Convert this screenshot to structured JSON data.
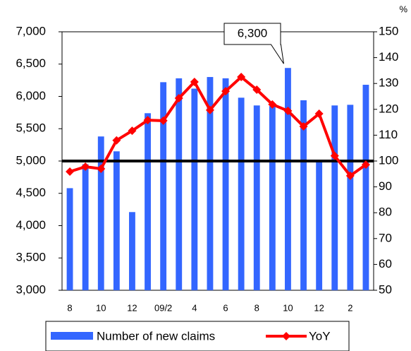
{
  "chart_data": {
    "type": "bar_line",
    "unit_label": "%",
    "annotation": "6,300",
    "categories": [
      "8",
      null,
      "10",
      null,
      "12",
      null,
      "09/2",
      null,
      "4",
      null,
      "6",
      null,
      "8",
      null,
      "10",
      null,
      "12",
      null,
      "2",
      null
    ],
    "series": [
      {
        "name": "Number of new claims",
        "type": "bar",
        "color": "#3366ff",
        "axis": "y",
        "values": [
          4580,
          4950,
          5380,
          5150,
          4210,
          5740,
          6220,
          6280,
          6120,
          6300,
          6280,
          5980,
          5860,
          5850,
          6440,
          5940,
          5000,
          5860,
          5870,
          6180
        ]
      },
      {
        "name": "YoY",
        "type": "line",
        "color": "#ff0000",
        "axis": "y2",
        "values": [
          95.9,
          97.8,
          97,
          108,
          111.7,
          115.8,
          115.6,
          124.3,
          130.6,
          119.7,
          127,
          132.5,
          127.6,
          121.9,
          119.4,
          113.4,
          118.3,
          102,
          94.3,
          98.6
        ]
      }
    ],
    "reference_line": 100,
    "ylim": [
      3000,
      7000
    ],
    "yticks": [
      {
        "value": 3000,
        "label": "3,000"
      },
      {
        "value": 3500,
        "label": "3,500"
      },
      {
        "value": 4000,
        "label": "4,000"
      },
      {
        "value": 4500,
        "label": "4,500"
      },
      {
        "value": 5000,
        "label": "5,000"
      },
      {
        "value": 5500,
        "label": "5,500"
      },
      {
        "value": 6000,
        "label": "6,000"
      },
      {
        "value": 6500,
        "label": "6,500"
      },
      {
        "value": 7000,
        "label": "7,000"
      }
    ],
    "y2lim": [
      50,
      150
    ],
    "y2ticks": [
      50,
      60,
      70,
      80,
      90,
      100,
      110,
      120,
      130,
      140,
      150
    ]
  }
}
